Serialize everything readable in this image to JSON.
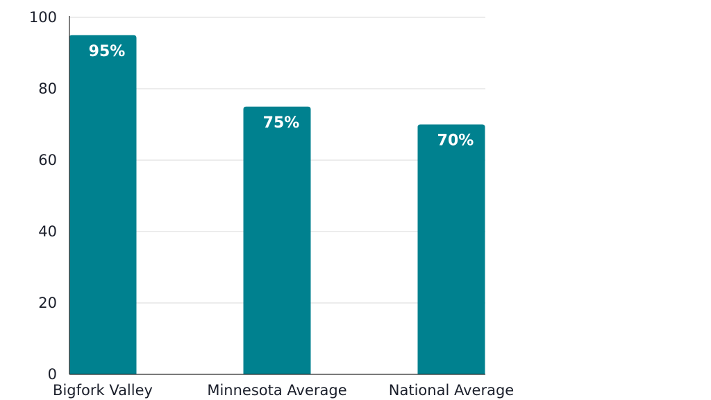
{
  "chart_data": {
    "type": "bar",
    "categories": [
      "Bigfork Valley",
      "Minnesota Average",
      "National Average"
    ],
    "values": [
      95,
      75,
      70
    ],
    "data_labels": [
      "95%",
      "75%",
      "70%"
    ],
    "title": "",
    "xlabel": "",
    "ylabel": "",
    "ylim": [
      0,
      100
    ],
    "yticks": [
      "0",
      "20",
      "40",
      "60",
      "80",
      "100"
    ],
    "grid": true,
    "legend": "none",
    "colors": {
      "bar": "#00818F",
      "grid": "#d9d9d9",
      "text": "#1b1f2b",
      "data_label": "#ffffff"
    }
  }
}
